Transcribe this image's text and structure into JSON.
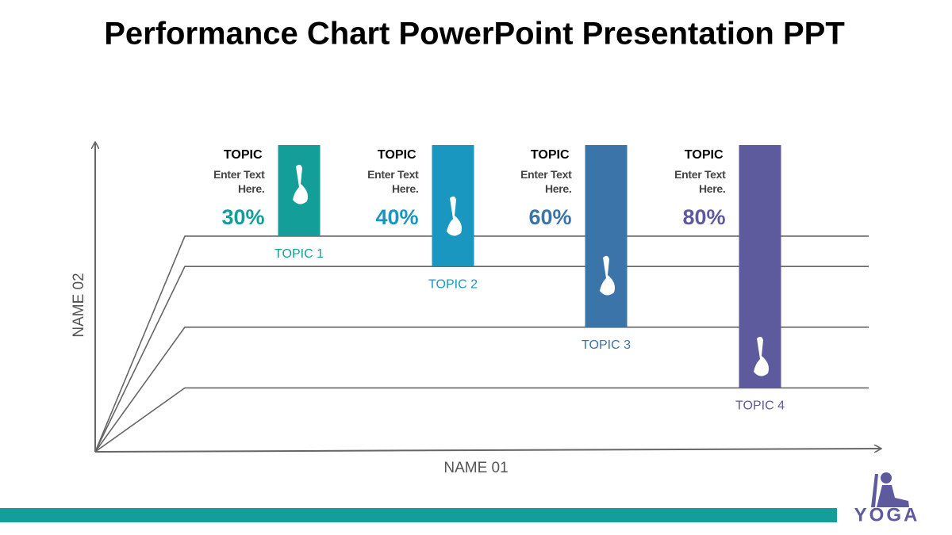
{
  "chart_data": {
    "type": "bar",
    "title": "Performance Chart PowerPoint Presentation PPT",
    "categories": [
      "TOPIC 1",
      "TOPIC 2",
      "TOPIC 3",
      "TOPIC 4"
    ],
    "values": [
      30,
      40,
      60,
      80
    ],
    "value_labels": [
      "30%",
      "40%",
      "60%",
      "80%"
    ],
    "colors": [
      "#139e9a",
      "#1a97c0",
      "#3b74a8",
      "#5e5a9e"
    ],
    "annotations": [
      {
        "heading": "TOPIC",
        "text": "Enter Text Here."
      },
      {
        "heading": "TOPIC",
        "text": "Enter Text Here."
      },
      {
        "heading": "TOPIC",
        "text": "Enter Text Here."
      },
      {
        "heading": "TOPIC",
        "text": "Enter Text Here."
      }
    ],
    "xlabel": "NAME 01",
    "ylabel": "NAME 02"
  },
  "logo_text": "YOGA"
}
